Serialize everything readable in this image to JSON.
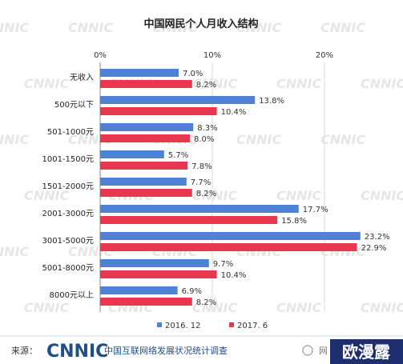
{
  "chart_data": {
    "type": "bar",
    "orientation": "horizontal",
    "title": "中国网民个人月收入结构",
    "categories": [
      "无收入",
      "500元以下",
      "501-1000元",
      "1001-1500元",
      "1501-2000元",
      "2001-3000元",
      "3001-5000元",
      "5001-8000元",
      "8000元以上"
    ],
    "series": [
      {
        "name": "2016. 12",
        "color": "#4f81d6",
        "values": [
          7.0,
          13.8,
          8.3,
          5.7,
          7.7,
          17.7,
          23.2,
          9.7,
          6.9
        ],
        "labels": [
          "7.0%",
          "13.8%",
          "8.3%",
          "5.7%",
          "7.7%",
          "17.7%",
          "23.2%",
          "9.7%",
          "6.9%"
        ]
      },
      {
        "name": "2017. 6",
        "color": "#e8384f",
        "values": [
          8.2,
          10.4,
          8.0,
          7.8,
          8.2,
          15.8,
          22.9,
          10.4,
          8.2
        ],
        "labels": [
          "8.2%",
          "10.4%",
          "8.0%",
          "7.8%",
          "8.2%",
          "15.8%",
          "22.9%",
          "10.4%",
          "8.2%"
        ]
      }
    ],
    "xlim": [
      0,
      25
    ],
    "xticks": [
      0,
      10,
      20
    ],
    "xtick_labels": [
      "0%",
      "10%",
      "20%"
    ],
    "legend_position": "bottom",
    "grid": true
  },
  "source": {
    "label": "来源：",
    "logo": "CNNIC",
    "name": "中国互联网络发展状况统计调查"
  },
  "watermark": "CNNIC",
  "corner_logo": "欧漫露",
  "corner_partial": "网"
}
